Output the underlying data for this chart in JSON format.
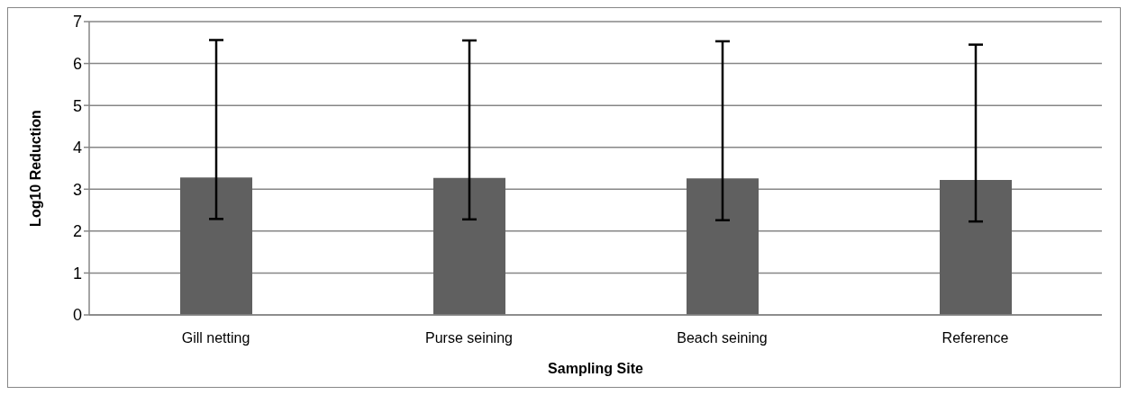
{
  "chart_data": {
    "type": "bar",
    "xlabel": "Sampling Site",
    "ylabel": "Log10 Reduction",
    "categories": [
      "Gill netting",
      "Purse seining",
      "Beach seining",
      "Reference"
    ],
    "values": [
      3.28,
      3.27,
      3.26,
      3.22
    ],
    "color": "#606060",
    "errors": [
      [
        2.29,
        6.56
      ],
      [
        2.28,
        6.55
      ],
      [
        2.26,
        6.53
      ],
      [
        2.23,
        6.45
      ]
    ],
    "ylim": [
      0,
      7
    ],
    "yticks": [
      0,
      1,
      2,
      3,
      4,
      5,
      6,
      7
    ],
    "grid": "y",
    "legend": false
  }
}
